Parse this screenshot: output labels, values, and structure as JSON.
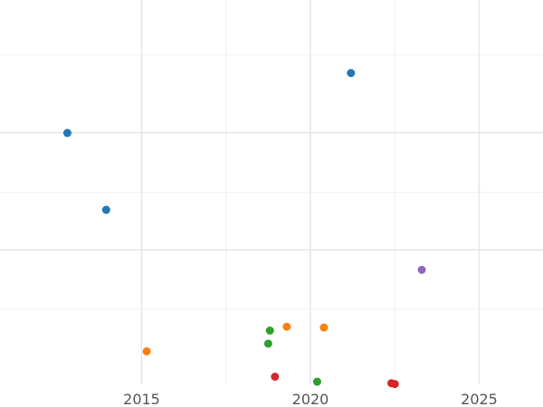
{
  "chart_data": {
    "type": "scatter",
    "title": "",
    "xlabel": "",
    "ylabel": "",
    "xlim": [
      2011,
      2027
    ],
    "ylim": [
      0,
      1
    ],
    "grid": true,
    "x_ticks_major": [
      2015,
      2020,
      2025
    ],
    "x_ticks_minor": [
      2017.5,
      2022.5
    ],
    "y_gridlines_major": [
      0.35,
      0.655
    ],
    "y_gridlines_minor": [
      0.196,
      0.5,
      0.857
    ],
    "x_tick_labels": [
      "2015",
      "2020",
      "2025"
    ],
    "series": [
      {
        "color": "#1f77b4",
        "points": [
          [
            2012.8,
            0.654
          ],
          [
            2013.95,
            0.454
          ],
          [
            2021.2,
            0.81
          ]
        ]
      },
      {
        "color": "#ff7f0e",
        "points": [
          [
            2015.15,
            0.086
          ],
          [
            2019.3,
            0.15
          ],
          [
            2020.4,
            0.148
          ]
        ]
      },
      {
        "color": "#2ca02c",
        "points": [
          [
            2018.8,
            0.14
          ],
          [
            2018.75,
            0.106
          ],
          [
            2020.2,
            0.007
          ]
        ]
      },
      {
        "color": "#d62728",
        "points": [
          [
            2018.95,
            0.02
          ],
          [
            2022.4,
            0.003
          ],
          [
            2022.5,
            0.001
          ]
        ]
      },
      {
        "color": "#9467bd",
        "points": [
          [
            2023.3,
            0.298
          ]
        ]
      }
    ]
  }
}
